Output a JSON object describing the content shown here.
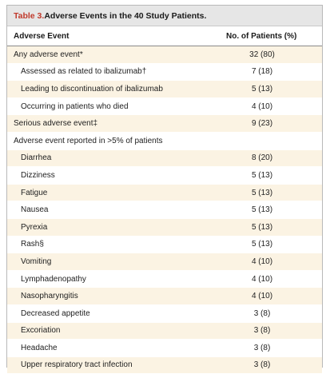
{
  "table": {
    "title_prefix": "Table 3.",
    "title_text": " Adverse Events in the 40 Study Patients.",
    "col_event": "Adverse Event",
    "col_patients": "No. of Patients (%)",
    "rows": [
      {
        "event": "Any adverse event*",
        "value": "32 (80)"
      },
      {
        "event": "Assessed as related to ibalizumab†",
        "value": "7 (18)"
      },
      {
        "event": "Leading to discontinuation of ibalizumab",
        "value": "5 (13)"
      },
      {
        "event": "Occurring in patients who died",
        "value": "4 (10)"
      },
      {
        "event": "Serious adverse event‡",
        "value": "9 (23)"
      },
      {
        "event": "Adverse event reported in >5% of patients",
        "value": ""
      },
      {
        "event": "Diarrhea",
        "value": "8 (20)"
      },
      {
        "event": "Dizziness",
        "value": "5 (13)"
      },
      {
        "event": "Fatigue",
        "value": "5 (13)"
      },
      {
        "event": "Nausea",
        "value": "5 (13)"
      },
      {
        "event": "Pyrexia",
        "value": "5 (13)"
      },
      {
        "event": "Rash§",
        "value": "5 (13)"
      },
      {
        "event": "Vomiting",
        "value": "4 (10)"
      },
      {
        "event": "Lymphadenopathy",
        "value": "4 (10)"
      },
      {
        "event": "Nasopharyngitis",
        "value": "4 (10)"
      },
      {
        "event": "Decreased appetite",
        "value": "3 (8)"
      },
      {
        "event": "Excoriation",
        "value": "3 (8)"
      },
      {
        "event": "Headache",
        "value": "3 (8)"
      },
      {
        "event": "Upper respiratory tract infection",
        "value": "3 (8)"
      }
    ]
  }
}
